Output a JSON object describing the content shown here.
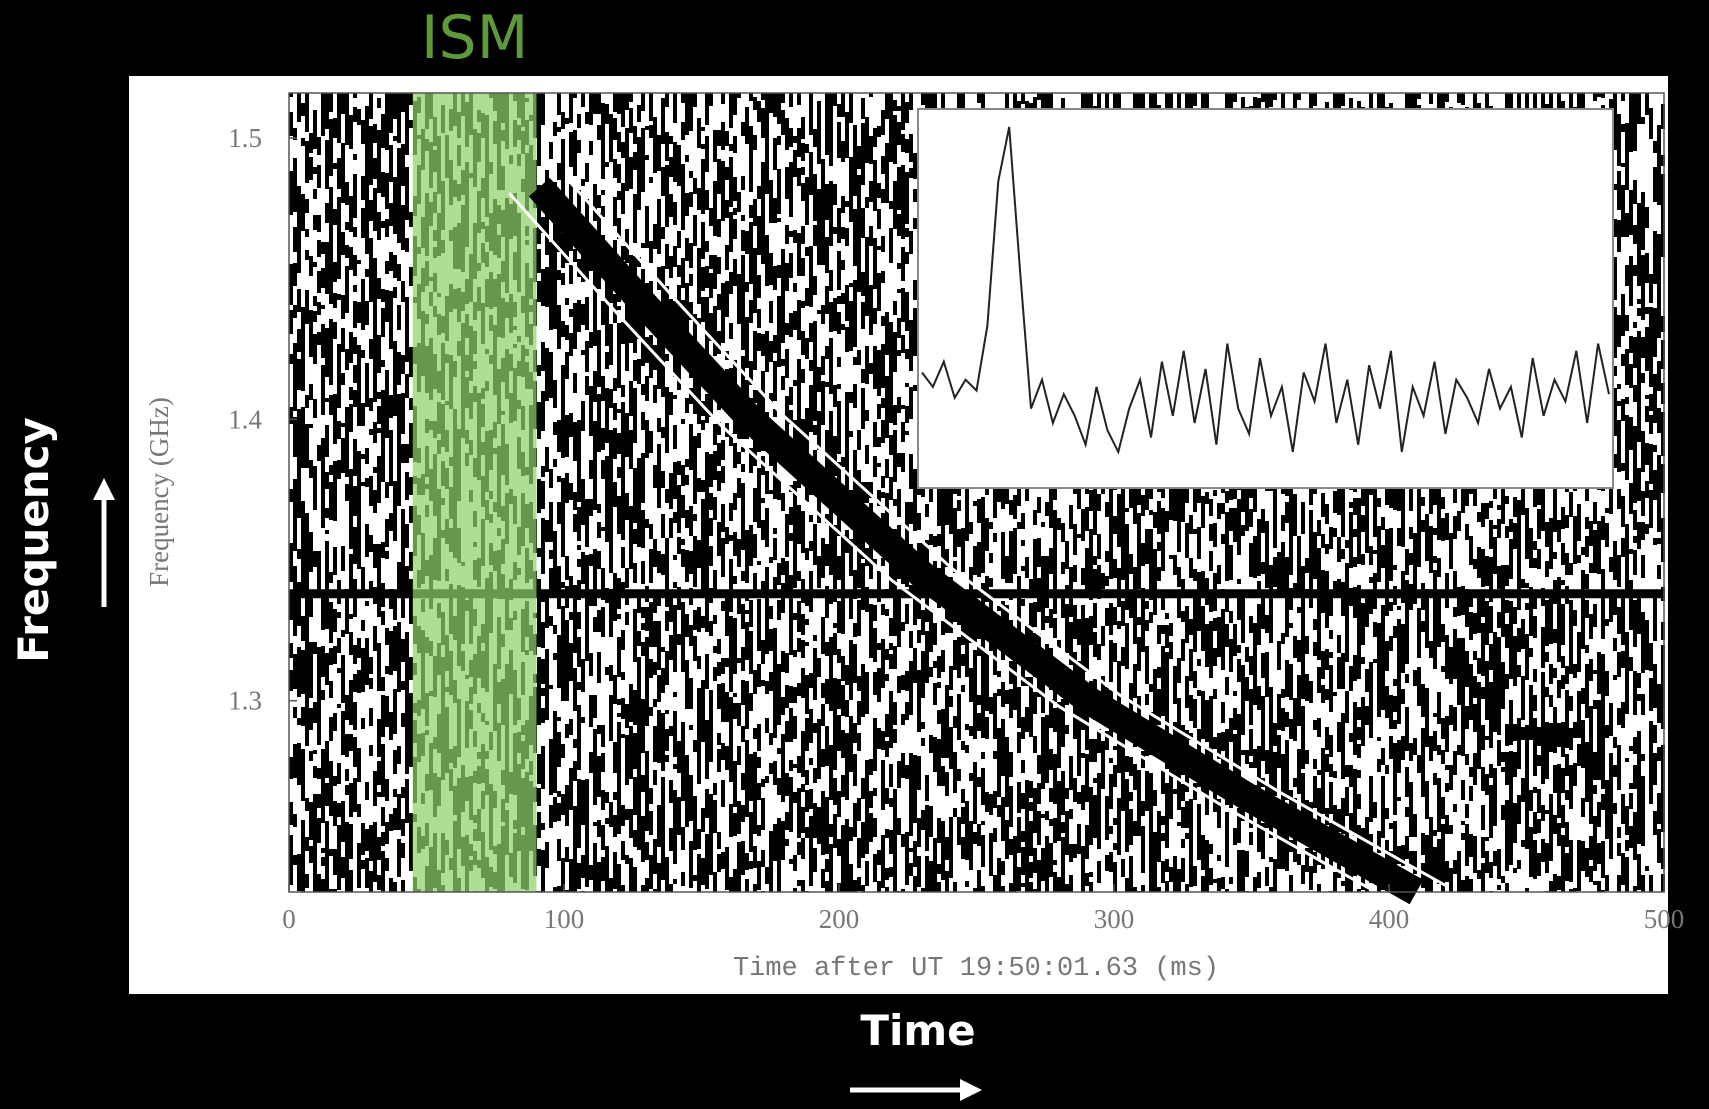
{
  "chart_data": {
    "type": "dynamic-spectrum",
    "x_label": "Time after UT 19:50:01.63 (ms)",
    "y_label": "Frequency (GHz)",
    "xlim": [
      0,
      500
    ],
    "xticks": [
      0,
      100,
      200,
      300,
      400,
      500
    ],
    "ylim": [
      1.232,
      1.516
    ],
    "yticks": [
      1.3,
      1.4,
      1.5
    ],
    "sweep": {
      "x": [
        91,
        130,
        168,
        230,
        291,
        350,
        410
      ],
      "values": [
        1.4825,
        1.44,
        1.4,
        1.345,
        1.3,
        1.265,
        1.232
      ],
      "color": "#000000"
    },
    "flagged_channel": 1.338,
    "ism_band": {
      "label": "ISM",
      "range": [
        45,
        90
      ],
      "color": "#8fd16a"
    },
    "inset": {
      "type": "line",
      "ylim": [
        0,
        1.05
      ],
      "color": "#222222",
      "values": [
        0.32,
        0.28,
        0.35,
        0.25,
        0.3,
        0.27,
        0.45,
        0.85,
        1.0,
        0.6,
        0.22,
        0.3,
        0.18,
        0.26,
        0.2,
        0.12,
        0.28,
        0.16,
        0.1,
        0.22,
        0.3,
        0.14,
        0.35,
        0.2,
        0.38,
        0.18,
        0.33,
        0.12,
        0.4,
        0.22,
        0.15,
        0.36,
        0.2,
        0.28,
        0.1,
        0.32,
        0.24,
        0.4,
        0.18,
        0.3,
        0.12,
        0.34,
        0.22,
        0.38,
        0.1,
        0.28,
        0.2,
        0.35,
        0.15,
        0.3,
        0.25,
        0.18,
        0.33,
        0.22,
        0.28,
        0.14,
        0.36,
        0.2,
        0.3,
        0.24,
        0.38,
        0.18,
        0.4,
        0.26
      ]
    },
    "annotations": {
      "frequency": "Frequency",
      "time": "Time"
    }
  }
}
